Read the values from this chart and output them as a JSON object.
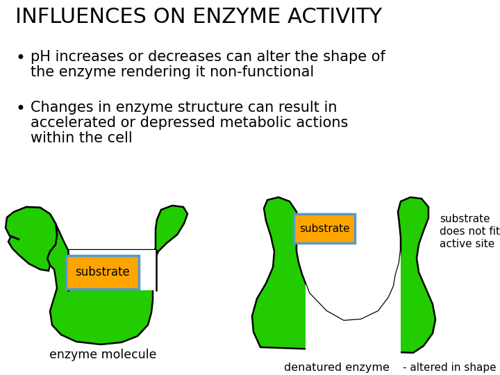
{
  "title": "INFLUENCES ON ENZYME ACTIVITY",
  "title_fontsize": 22,
  "bullet1_line1": "pH increases or decreases can alter the shape of",
  "bullet1_line2": "the enzyme rendering it non-functional",
  "bullet2_line1": "Changes in enzyme structure can result in",
  "bullet2_line2": "accelerated or depressed metabolic actions",
  "bullet2_line3": "within the cell",
  "text_fontsize": 15,
  "enzyme_color": "#22cc00",
  "substrate_color": "#FFA500",
  "substrate_border_color": "#5599cc",
  "bg_color": "#ffffff",
  "label1": "enzyme molecule",
  "label2": "denatured enzyme",
  "label3": "substrate\ndoes not fit\nactive site",
  "label4": "- altered in shape",
  "substrate_label": "substrate"
}
